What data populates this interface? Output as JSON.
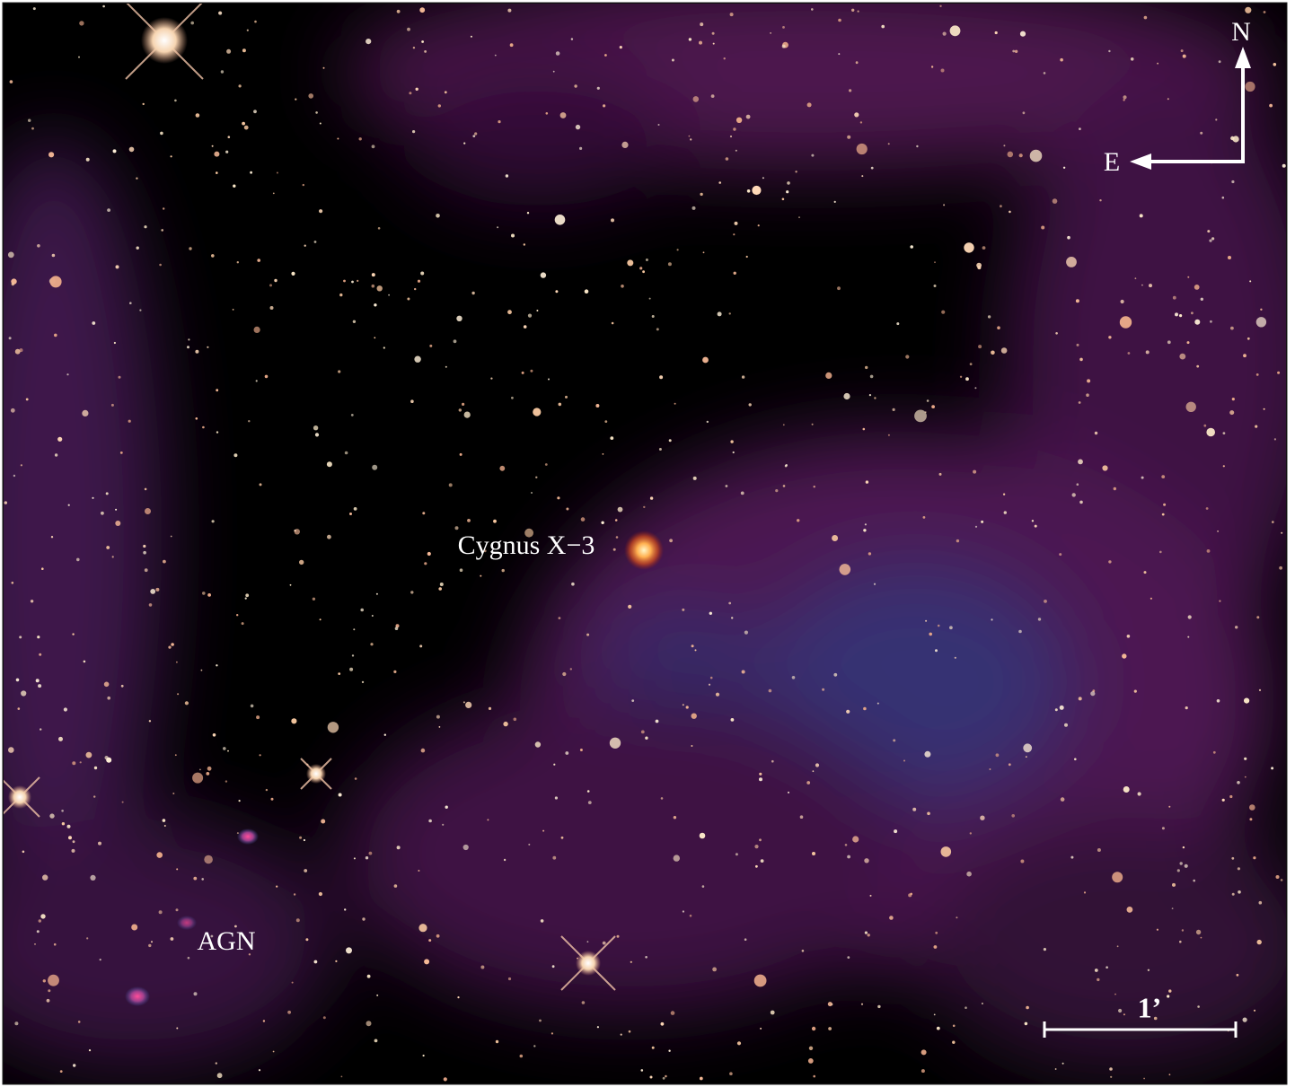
{
  "labels": {
    "north": "N",
    "east": "E",
    "source": "Cygnus X−3",
    "agn": "AGN",
    "scale_bar": "1’"
  }
}
